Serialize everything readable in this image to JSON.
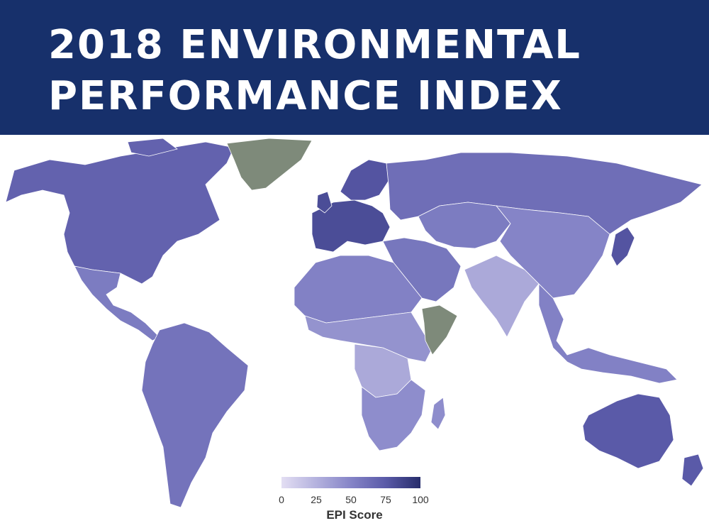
{
  "title": {
    "line1": "2018 ENVIRONMENTAL",
    "line2": "PERFORMANCE INDEX"
  },
  "legend": {
    "title": "EPI Score",
    "ticks": [
      "0",
      "25",
      "50",
      "75",
      "100"
    ],
    "gradient": [
      "#e3def3",
      "#b4b2de",
      "#8584c7",
      "#5a5aa8",
      "#262c6b"
    ],
    "no_data_color": "#7e8a7a"
  },
  "map": {
    "ocean_color": "#ffffff",
    "regions": [
      {
        "name": "north-america",
        "score": 70
      },
      {
        "name": "mexico-central-america",
        "score": 55
      },
      {
        "name": "south-america",
        "score": 60
      },
      {
        "name": "greenland",
        "score": null
      },
      {
        "name": "europe-west",
        "score": 82
      },
      {
        "name": "scandinavia",
        "score": 78
      },
      {
        "name": "russia",
        "score": 63
      },
      {
        "name": "north-africa",
        "score": 52
      },
      {
        "name": "sub-saharan-africa",
        "score": 42
      },
      {
        "name": "central-africa",
        "score": 30
      },
      {
        "name": "southern-africa",
        "score": 45
      },
      {
        "name": "middle-east",
        "score": 58
      },
      {
        "name": "central-asia",
        "score": 55
      },
      {
        "name": "south-asia",
        "score": 30
      },
      {
        "name": "china",
        "score": 50
      },
      {
        "name": "southeast-asia",
        "score": 52
      },
      {
        "name": "japan",
        "score": 78
      },
      {
        "name": "australia",
        "score": 75
      },
      {
        "name": "horn-of-africa",
        "score": null
      }
    ]
  }
}
